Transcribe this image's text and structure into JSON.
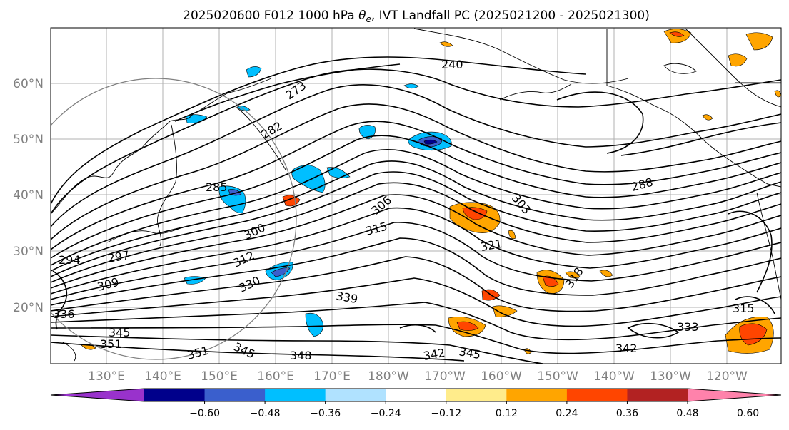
{
  "title": {
    "prefix": "2025020600 F012 1000 hPa ",
    "theta": "θ",
    "sub": "e",
    "suffix": ", IVT Landfall PC (2025021200 - 2025021300)"
  },
  "map": {
    "lat_labels": [
      "60°N",
      "50°N",
      "40°N",
      "30°N",
      "20°N"
    ],
    "lon_labels": [
      "130°E",
      "140°E",
      "150°E",
      "160°E",
      "170°E",
      "180°W",
      "170°W",
      "160°W",
      "150°W",
      "140°W",
      "130°W",
      "120°W"
    ],
    "contour_labels": [
      "240",
      "273",
      "282",
      "285",
      "288",
      "294",
      "297",
      "300",
      "303",
      "306",
      "309",
      "312",
      "315",
      "318",
      "321",
      "330",
      "333",
      "336",
      "339",
      "342",
      "345",
      "345",
      "345",
      "348",
      "351",
      "351",
      "315",
      "342"
    ]
  },
  "colorbar": {
    "colors": [
      "#9932cc",
      "#00008b",
      "#3a5fcd",
      "#00bfff",
      "#b0e2ff",
      "#ffffff",
      "#ffec8b",
      "#ffa500",
      "#ff4500",
      "#b22222",
      "#ff82ab"
    ],
    "tick_labels": [
      "−0.60",
      "−0.48",
      "−0.36",
      "−0.24",
      "−0.12",
      "0.12",
      "0.24",
      "0.36",
      "0.48",
      "0.60"
    ]
  }
}
